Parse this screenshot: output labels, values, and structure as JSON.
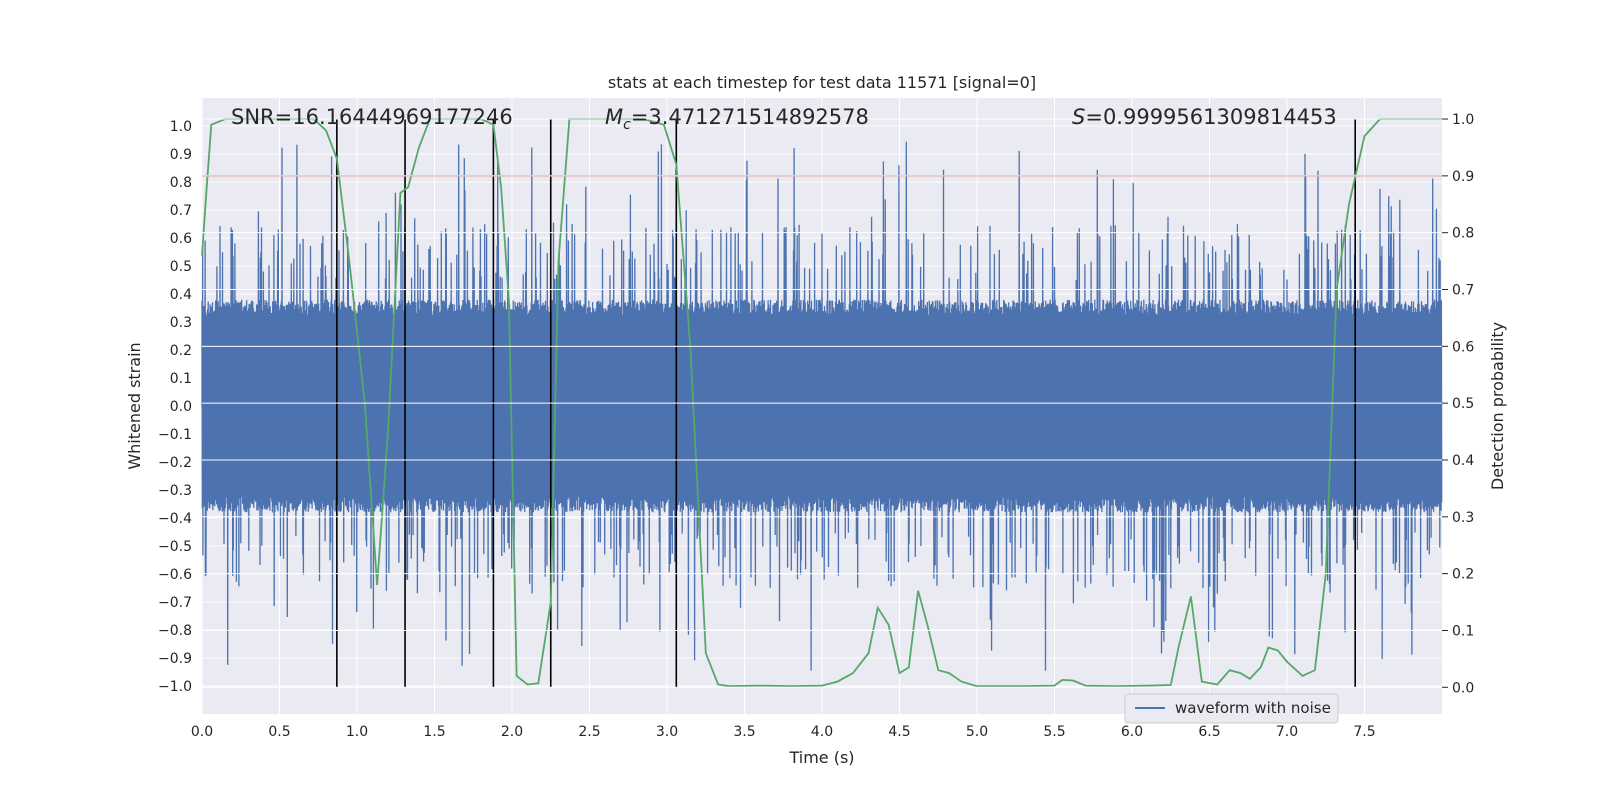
{
  "chart_data": {
    "type": "line",
    "title": "stats at each timestep for test data 11571 [signal=0]",
    "xlabel": "Time (s)",
    "ylabel": "Whitened strain",
    "y2label": "Detection probability",
    "xlim": [
      0.0,
      8.0
    ],
    "ylim": [
      -1.1,
      1.1
    ],
    "y2lim": [
      -0.047,
      1.037
    ],
    "xticks": [
      0.0,
      0.5,
      1.0,
      1.5,
      2.0,
      2.5,
      3.0,
      3.5,
      4.0,
      4.5,
      5.0,
      5.5,
      6.0,
      6.5,
      7.0,
      7.5
    ],
    "yticks": [
      -1.0,
      -0.9,
      -0.8,
      -0.7,
      -0.6,
      -0.5,
      -0.4,
      -0.3,
      -0.2,
      -0.1,
      0.0,
      0.1,
      0.2,
      0.3,
      0.4,
      0.5,
      0.6,
      0.7,
      0.8,
      0.9,
      1.0
    ],
    "y2ticks": [
      0.0,
      0.1,
      0.2,
      0.3,
      0.4,
      0.5,
      0.6,
      0.7,
      0.8,
      0.9,
      1.0
    ],
    "grid": true,
    "legend": {
      "position": "bottom-right",
      "entries": [
        "waveform with noise"
      ]
    },
    "annotations": {
      "snr": {
        "label": "SNR=16.16444969177246"
      },
      "mc": {
        "sym": "M",
        "sub": "c",
        "rest": "=3.471271514892578"
      },
      "s": {
        "sym": "S",
        "rest": "=0.9999561309814453"
      }
    },
    "threshold": {
      "axis": "y2",
      "value": 0.9,
      "color": "#c44e52"
    },
    "vlines": [
      0.87,
      1.31,
      1.88,
      2.25,
      3.06,
      7.44
    ],
    "waveform": {
      "name": "waveform with noise",
      "color": "#4c72b0",
      "duration": 8.0,
      "samples": 4000,
      "core_amplitude": 0.38,
      "peak_range": [
        -0.98,
        0.95
      ]
    },
    "probability": {
      "color": "#55a868",
      "points": [
        [
          0.0,
          0.76
        ],
        [
          0.03,
          0.88
        ],
        [
          0.06,
          0.99
        ],
        [
          0.15,
          1.0
        ],
        [
          0.4,
          1.0
        ],
        [
          0.6,
          1.0
        ],
        [
          0.72,
          1.0
        ],
        [
          0.8,
          0.98
        ],
        [
          0.87,
          0.93
        ],
        [
          0.95,
          0.75
        ],
        [
          1.05,
          0.5
        ],
        [
          1.13,
          0.18
        ],
        [
          1.2,
          0.45
        ],
        [
          1.28,
          0.87
        ],
        [
          1.33,
          0.88
        ],
        [
          1.4,
          0.95
        ],
        [
          1.47,
          1.0
        ],
        [
          1.6,
          1.0
        ],
        [
          1.8,
          1.0
        ],
        [
          1.88,
          0.99
        ],
        [
          1.93,
          0.88
        ],
        [
          1.98,
          0.68
        ],
        [
          2.03,
          0.02
        ],
        [
          2.1,
          0.005
        ],
        [
          2.17,
          0.007
        ],
        [
          2.25,
          0.15
        ],
        [
          2.3,
          0.75
        ],
        [
          2.37,
          1.0
        ],
        [
          2.6,
          1.0
        ],
        [
          2.85,
          1.0
        ],
        [
          2.98,
          0.99
        ],
        [
          3.06,
          0.92
        ],
        [
          3.15,
          0.6
        ],
        [
          3.25,
          0.06
        ],
        [
          3.33,
          0.005
        ],
        [
          3.4,
          0.002
        ],
        [
          3.6,
          0.003
        ],
        [
          3.8,
          0.002
        ],
        [
          4.0,
          0.003
        ],
        [
          4.1,
          0.01
        ],
        [
          4.2,
          0.025
        ],
        [
          4.3,
          0.06
        ],
        [
          4.36,
          0.14
        ],
        [
          4.43,
          0.11
        ],
        [
          4.5,
          0.025
        ],
        [
          4.56,
          0.035
        ],
        [
          4.62,
          0.17
        ],
        [
          4.68,
          0.11
        ],
        [
          4.75,
          0.03
        ],
        [
          4.82,
          0.025
        ],
        [
          4.9,
          0.01
        ],
        [
          5.0,
          0.002
        ],
        [
          5.3,
          0.002
        ],
        [
          5.5,
          0.003
        ],
        [
          5.55,
          0.013
        ],
        [
          5.62,
          0.012
        ],
        [
          5.7,
          0.003
        ],
        [
          5.9,
          0.002
        ],
        [
          6.1,
          0.003
        ],
        [
          6.25,
          0.004
        ],
        [
          6.3,
          0.07
        ],
        [
          6.38,
          0.16
        ],
        [
          6.45,
          0.01
        ],
        [
          6.55,
          0.005
        ],
        [
          6.63,
          0.03
        ],
        [
          6.7,
          0.025
        ],
        [
          6.76,
          0.015
        ],
        [
          6.83,
          0.035
        ],
        [
          6.88,
          0.07
        ],
        [
          6.94,
          0.065
        ],
        [
          7.0,
          0.045
        ],
        [
          7.1,
          0.02
        ],
        [
          7.18,
          0.03
        ],
        [
          7.25,
          0.2
        ],
        [
          7.32,
          0.7
        ],
        [
          7.4,
          0.85
        ],
        [
          7.5,
          0.97
        ],
        [
          7.6,
          1.0
        ],
        [
          8.0,
          1.0
        ]
      ]
    }
  }
}
